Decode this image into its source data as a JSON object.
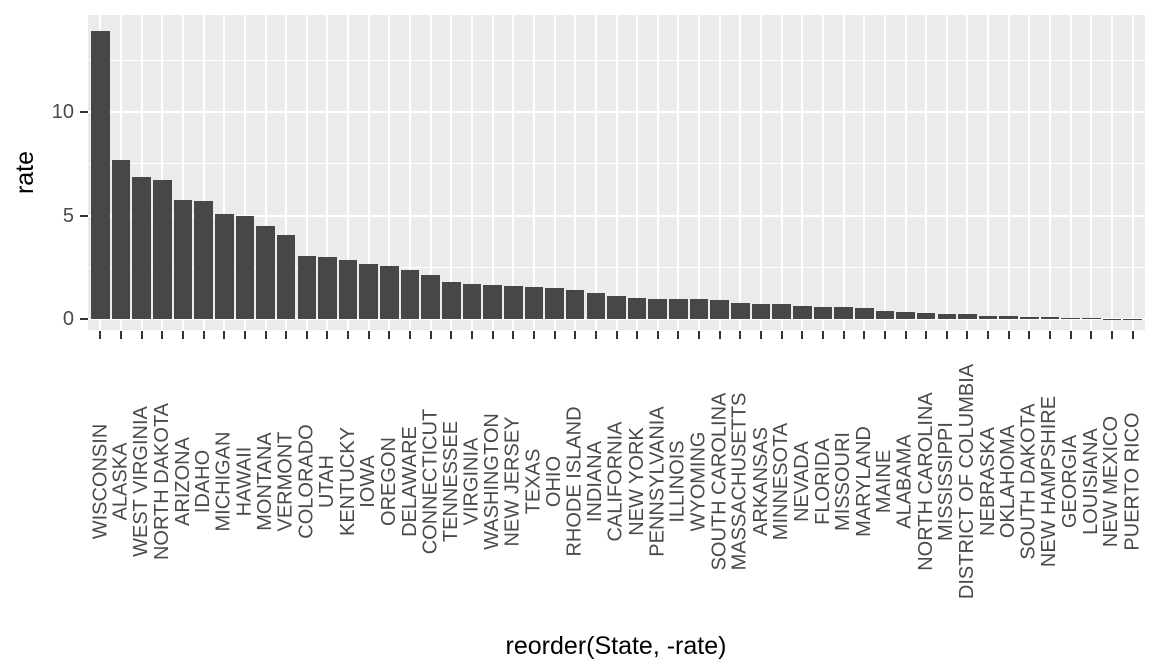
{
  "chart_data": {
    "type": "bar",
    "title": "",
    "xlabel": "reorder(State, -rate)",
    "ylabel": "rate",
    "legend_position": "none",
    "grid": "on",
    "y_major_ticks": [
      0,
      5,
      10
    ],
    "y_minor_gridlines": [
      2.5,
      7.5,
      12.5
    ],
    "ylim": [
      -0.7,
      14.6
    ],
    "categories": [
      "WISCONSIN",
      "ALASKA",
      "WEST VIRGINIA",
      "NORTH DAKOTA",
      "ARIZONA",
      "IDAHO",
      "MICHIGAN",
      "HAWAII",
      "MONTANA",
      "VERMONT",
      "COLORADO",
      "UTAH",
      "KENTUCKY",
      "IOWA",
      "OREGON",
      "DELAWARE",
      "CONNECTICUT",
      "TENNESSEE",
      "VIRGINIA",
      "WASHINGTON",
      "NEW JERSEY",
      "TEXAS",
      "OHIO",
      "RHODE ISLAND",
      "INDIANA",
      "CALIFORNIA",
      "NEW YORK",
      "PENNSYLVANIA",
      "ILLINOIS",
      "WYOMING",
      "SOUTH CAROLINA",
      "MASSACHUSETTS",
      "ARKANSAS",
      "MINNESOTA",
      "NEVADA",
      "FLORIDA",
      "MISSOURI",
      "MARYLAND",
      "MAINE",
      "ALABAMA",
      "NORTH CAROLINA",
      "MISSISSIPPI",
      "DISTRICT OF COLUMBIA",
      "NEBRASKA",
      "OKLAHOMA",
      "SOUTH DAKOTA",
      "NEW HAMPSHIRE",
      "GEORGIA",
      "LOUISIANA",
      "NEW MEXICO",
      "PUERTO RICO"
    ],
    "values": [
      13.9,
      7.7,
      6.85,
      6.7,
      5.75,
      5.7,
      5.1,
      5.0,
      4.5,
      4.05,
      3.05,
      3.0,
      2.85,
      2.65,
      2.55,
      2.4,
      2.15,
      1.8,
      1.72,
      1.66,
      1.6,
      1.56,
      1.52,
      1.42,
      1.25,
      1.13,
      1.02,
      1.0,
      0.97,
      0.96,
      0.95,
      0.78,
      0.74,
      0.72,
      0.62,
      0.59,
      0.58,
      0.56,
      0.42,
      0.33,
      0.31,
      0.26,
      0.25,
      0.15,
      0.14,
      0.11,
      0.1,
      0.07,
      0.06,
      0.03,
      0.02
    ],
    "colors": {
      "bar_fill": "#474747",
      "panel_background": "#EBEBEB",
      "gridline": "#FFFFFF",
      "tick_mark": "#333333",
      "axis_tick_text": "#4A4A4A",
      "axis_title_text": "#000000",
      "figure_background": "#FFFFFF"
    }
  }
}
